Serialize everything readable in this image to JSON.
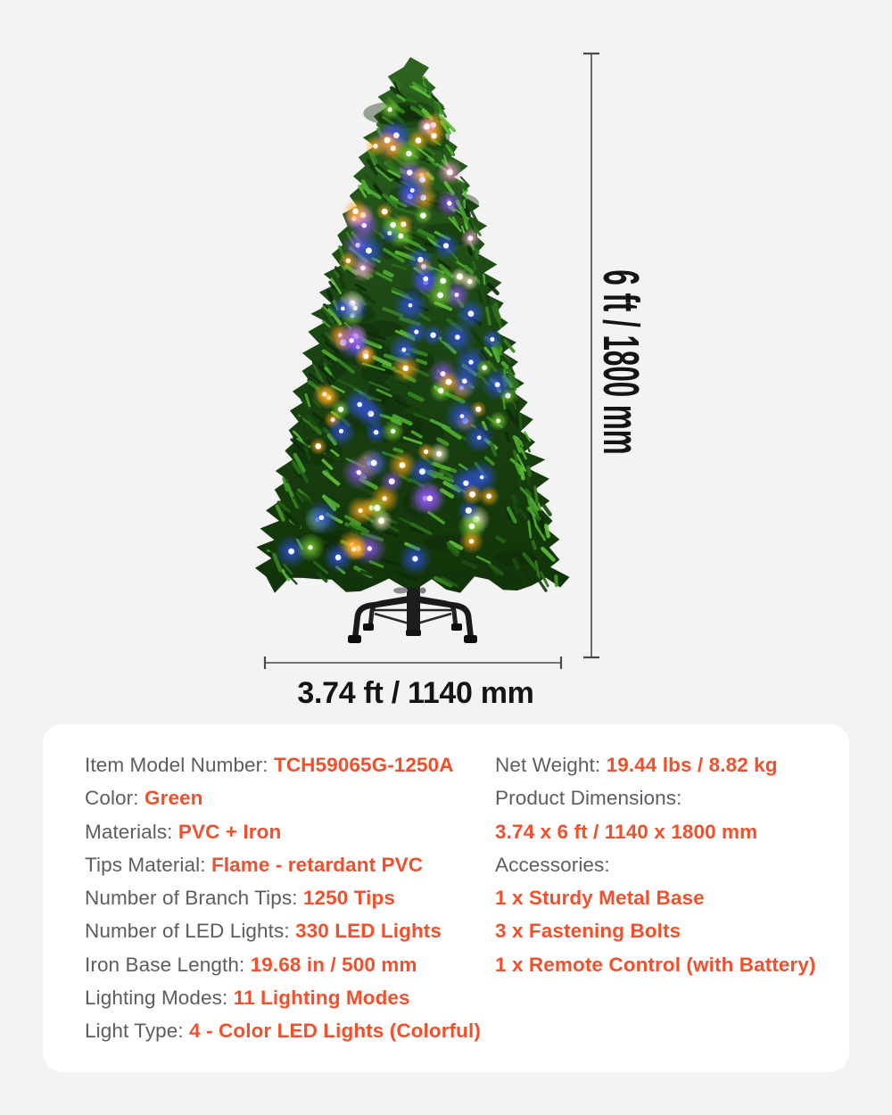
{
  "figure": {
    "alt": "pre-lit green artificial Christmas tree with multicolor LED lights on a black folding metal stand",
    "height_label": "6 ft / 1800 mm",
    "width_label": "3.74 ft / 1140 mm"
  },
  "specs": {
    "left": [
      {
        "label": "Item Model Number: ",
        "value": "TCH59065G-1250A"
      },
      {
        "label": "Color: ",
        "value": "Green"
      },
      {
        "label": "Materials: ",
        "value": "PVC + Iron"
      },
      {
        "label": "Tips Material: ",
        "value": "Flame - retardant PVC"
      },
      {
        "label": "Number of Branch Tips: ",
        "value": "1250 Tips"
      },
      {
        "label": "Number of LED Lights: ",
        "value": "330 LED Lights"
      },
      {
        "label": "Iron Base Length: ",
        "value": "19.68 in / 500 mm"
      },
      {
        "label": "Lighting Modes: ",
        "value": "11 Lighting Modes"
      },
      {
        "label": "Light Type: ",
        "value": "4 - Color LED Lights (Colorful)"
      }
    ],
    "right": [
      {
        "label": "Net Weight: ",
        "value": "19.44 lbs / 8.82 kg"
      },
      {
        "label": "Product Dimensions:",
        "value": ""
      },
      {
        "label": "",
        "value": "3.74 x 6 ft / 1140 x 1800 mm"
      },
      {
        "label": "Accessories:",
        "value": ""
      },
      {
        "label": "",
        "value": "1 x Sturdy Metal Base"
      },
      {
        "label": "",
        "value": "3 x Fastening Bolts"
      },
      {
        "label": "",
        "value": "1 x Remote Control (with Battery)"
      }
    ]
  },
  "colors": {
    "background": "#f3f3f4",
    "panel": "#ffffff",
    "label_gray": "#5d5d5d",
    "accent_orange": "#f1502c",
    "dimension_line": "#4a4a4a",
    "tree_green_base": "#1c4514",
    "led_palette": [
      "#3050e8",
      "#ffaa1e",
      "#8f55f0",
      "#7fd838",
      "#ff9fdc",
      "#fff3c4"
    ]
  }
}
